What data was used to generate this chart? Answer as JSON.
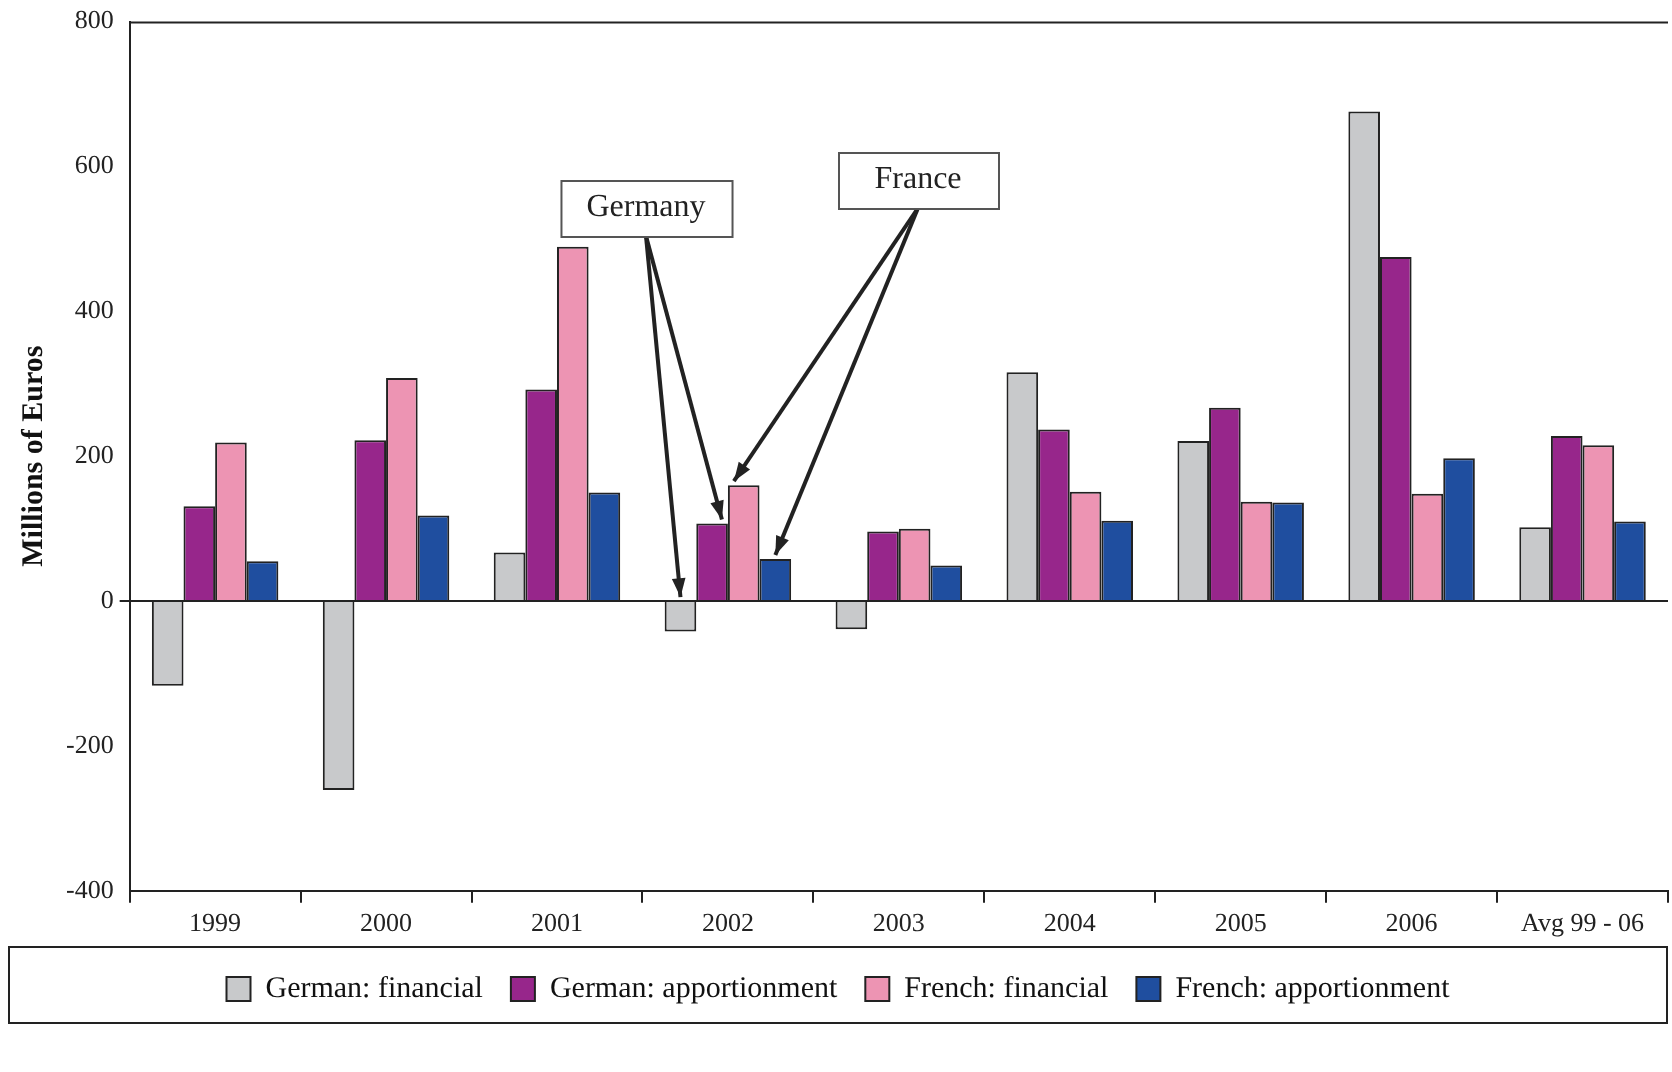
{
  "chart_data": {
    "type": "bar",
    "ylabel": "Millions of Euros",
    "categories": [
      "1999",
      "2000",
      "2001",
      "2002",
      "2003",
      "2004",
      "2005",
      "2006",
      "Avg 99 - 06"
    ],
    "series": [
      {
        "name": "German: financial",
        "color": "#c8c9cb",
        "values": [
          -117,
          -261,
          67,
          -42,
          -39,
          316,
          221,
          676,
          102
        ]
      },
      {
        "name": "German: apportionment",
        "color": "#97268b",
        "values": [
          131,
          222,
          292,
          107,
          96,
          237,
          267,
          475,
          228
        ]
      },
      {
        "name": "French: financial",
        "color": "#ed94b3",
        "values": [
          219,
          308,
          489,
          160,
          100,
          151,
          137,
          148,
          215
        ]
      },
      {
        "name": "French: apportionment",
        "color": "#1f4e9f",
        "values": [
          55,
          118,
          150,
          58,
          49,
          111,
          136,
          197,
          110
        ]
      }
    ],
    "ylim": [
      -400,
      800
    ],
    "yticks": [
      -400,
      -200,
      0,
      200,
      400,
      600,
      800
    ],
    "legend": "bottom",
    "annotations": [
      {
        "text": "Germany",
        "x": "2002",
        "y": 107
      },
      {
        "text": "France",
        "x": "2002",
        "y": 160
      }
    ]
  }
}
